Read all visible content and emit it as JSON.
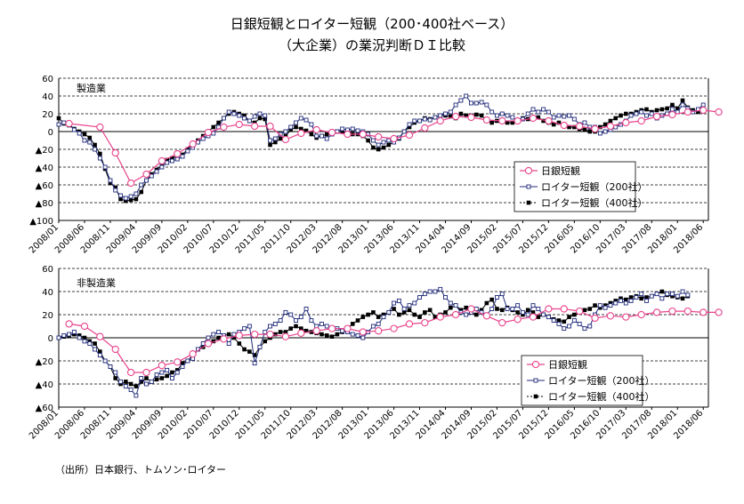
{
  "title_line1": "日銀短観とロイター短観（200･400社ベース）",
  "title_line2": "（大企業）の業況判断ＤＩ比較",
  "source": "（出所）日本銀行、トムソン･ロイター",
  "colors": {
    "boj": "#e8438c",
    "r200": "#1f2a7a",
    "r400": "#000000"
  },
  "chart_data": [
    {
      "type": "line",
      "panel_label": "製造業",
      "ylim": [
        -100,
        60
      ],
      "yticks": [
        60,
        40,
        20,
        0,
        -20,
        -40,
        -60,
        -80,
        -100
      ],
      "ytick_labels": [
        "60",
        "40",
        "20",
        "0",
        "▲20",
        "▲40",
        "▲60",
        "▲80",
        "▲100"
      ],
      "xtick_labels": [
        "2008/01",
        "2008/06",
        "2008/11",
        "2009/04",
        "2009/09",
        "2010/02",
        "2010/07",
        "2010/12",
        "2011/05",
        "2011/10",
        "2012/03",
        "2012/08",
        "2013/01",
        "2013/06",
        "2013/11",
        "2014/04",
        "2014/09",
        "2015/02",
        "2015/07",
        "2015/12",
        "2016/05",
        "2016/10",
        "2017/03",
        "2017/08",
        "2018/01",
        "2018/06"
      ],
      "legend": [
        "日銀短観",
        "ロイター短観（200社）",
        "ロイター短観（400社）"
      ],
      "boj": [
        [
          2,
          9
        ],
        [
          8,
          5
        ],
        [
          11,
          -24
        ],
        [
          14,
          -58
        ],
        [
          17,
          -48
        ],
        [
          20,
          -33
        ],
        [
          23,
          -25
        ],
        [
          26,
          -14
        ],
        [
          29,
          -1
        ],
        [
          32,
          5
        ],
        [
          35,
          8
        ],
        [
          38,
          6
        ],
        [
          41,
          6
        ],
        [
          44,
          -9
        ],
        [
          47,
          -2
        ],
        [
          50,
          2
        ],
        [
          53,
          -1
        ],
        [
          56,
          -3
        ],
        [
          59,
          -3
        ],
        [
          62,
          -6
        ],
        [
          65,
          -8
        ],
        [
          68,
          -4
        ],
        [
          71,
          4
        ],
        [
          74,
          12
        ],
        [
          77,
          17
        ],
        [
          80,
          16
        ],
        [
          83,
          13
        ],
        [
          86,
          12
        ],
        [
          89,
          12
        ],
        [
          92,
          15
        ],
        [
          95,
          12
        ],
        [
          98,
          7
        ],
        [
          101,
          6
        ],
        [
          104,
          3
        ],
        [
          107,
          6
        ],
        [
          110,
          10
        ],
        [
          113,
          12
        ],
        [
          116,
          17
        ],
        [
          119,
          19
        ],
        [
          122,
          22
        ],
        [
          125,
          24
        ],
        [
          128,
          22
        ]
      ],
      "r200": [
        8,
        10,
        9,
        2,
        -2,
        -10,
        -12,
        -20,
        -30,
        -40,
        -55,
        -66,
        -72,
        -75,
        -73,
        -70,
        -60,
        -55,
        -50,
        -45,
        -40,
        -35,
        -33,
        -31,
        -28,
        -22,
        -18,
        -12,
        -8,
        -5,
        -2,
        5,
        15,
        22,
        20,
        18,
        15,
        12,
        17,
        20,
        18,
        -10,
        -8,
        -3,
        0,
        5,
        10,
        15,
        13,
        8,
        -5,
        -5,
        -8,
        -3,
        0,
        3,
        2,
        3,
        1,
        0,
        -3,
        -10,
        -15,
        -12,
        -10,
        -12,
        -7,
        0,
        8,
        12,
        12,
        14,
        13,
        16,
        18,
        20,
        22,
        30,
        35,
        40,
        32,
        32,
        33,
        30,
        22,
        18,
        20,
        18,
        16,
        12,
        14,
        20,
        25,
        22,
        25,
        22,
        16,
        18,
        17,
        18,
        14,
        8,
        10,
        5,
        5,
        -2,
        0,
        2,
        5,
        8,
        12,
        18,
        20,
        22,
        18,
        20,
        15,
        18,
        20,
        25,
        22,
        30,
        26,
        22,
        25,
        30
      ],
      "r400": [
        15,
        9,
        7,
        3,
        0,
        -3,
        -7,
        -15,
        -25,
        -42,
        -58,
        -63,
        -76,
        -78,
        -77,
        -76,
        -68,
        -55,
        -48,
        -43,
        -38,
        -32,
        -30,
        -28,
        -26,
        -20,
        -14,
        -10,
        -5,
        0,
        5,
        10,
        15,
        20,
        22,
        20,
        18,
        12,
        10,
        15,
        14,
        -15,
        -12,
        -8,
        -5,
        2,
        5,
        3,
        1,
        -3,
        -7,
        -5,
        -3,
        -2,
        0,
        0,
        -2,
        -3,
        -3,
        -5,
        -10,
        -18,
        -20,
        -18,
        -15,
        -12,
        -8,
        0,
        5,
        10,
        12,
        15,
        14,
        16,
        18,
        18,
        17,
        15,
        20,
        18,
        18,
        19,
        18,
        12,
        10,
        12,
        13,
        10,
        10,
        13,
        15,
        14,
        15,
        16,
        12,
        10,
        8,
        10,
        7,
        5,
        5,
        3,
        2,
        0,
        0,
        5,
        8,
        12,
        15,
        18,
        20,
        20,
        22,
        24,
        25,
        22,
        24,
        25,
        26,
        30,
        26,
        35,
        27,
        24,
        22,
        26
      ]
    },
    {
      "type": "line",
      "panel_label": "非製造業",
      "ylim": [
        -60,
        60
      ],
      "yticks": [
        60,
        40,
        20,
        0,
        -20,
        -40,
        -60
      ],
      "ytick_labels": [
        "60",
        "40",
        "20",
        "0",
        "▲20",
        "▲40",
        "▲60"
      ],
      "xtick_labels": [
        "2008/01",
        "2008/06",
        "2008/11",
        "2009/04",
        "2009/09",
        "2010/02",
        "2010/07",
        "2010/12",
        "2011/05",
        "2011/10",
        "2012/03",
        "2012/08",
        "2013/01",
        "2013/06",
        "2013/11",
        "2014/04",
        "2014/09",
        "2015/02",
        "2015/07",
        "2015/12",
        "2016/05",
        "2016/10",
        "2017/03",
        "2017/08",
        "2018/01",
        "2018/06"
      ],
      "legend": [
        "日銀短観",
        "ロイター短観（200社）",
        "ロイター短観（400社）"
      ],
      "boj": [
        [
          2,
          12
        ],
        [
          5,
          10
        ],
        [
          8,
          1
        ],
        [
          11,
          -10
        ],
        [
          14,
          -30
        ],
        [
          17,
          -30
        ],
        [
          20,
          -24
        ],
        [
          23,
          -21
        ],
        [
          26,
          -14
        ],
        [
          29,
          -5
        ],
        [
          32,
          -1
        ],
        [
          35,
          2
        ],
        [
          38,
          3
        ],
        [
          41,
          3
        ],
        [
          44,
          1
        ],
        [
          47,
          4
        ],
        [
          50,
          6
        ],
        [
          53,
          8
        ],
        [
          56,
          8
        ],
        [
          59,
          5
        ],
        [
          62,
          6
        ],
        [
          65,
          8
        ],
        [
          68,
          12
        ],
        [
          71,
          13
        ],
        [
          74,
          18
        ],
        [
          77,
          20
        ],
        [
          80,
          25
        ],
        [
          83,
          19
        ],
        [
          86,
          13
        ],
        [
          89,
          16
        ],
        [
          92,
          18
        ],
        [
          95,
          25
        ],
        [
          98,
          25
        ],
        [
          101,
          23
        ],
        [
          104,
          17
        ],
        [
          107,
          19
        ],
        [
          110,
          18
        ],
        [
          113,
          20
        ],
        [
          116,
          22
        ],
        [
          119,
          23
        ],
        [
          122,
          23
        ],
        [
          125,
          22
        ],
        [
          128,
          22
        ]
      ],
      "r200": [
        0,
        2,
        3,
        5,
        0,
        -3,
        -5,
        -10,
        -15,
        -20,
        -25,
        -30,
        -38,
        -42,
        -45,
        -50,
        -35,
        -40,
        -38,
        -32,
        -30,
        -28,
        -35,
        -30,
        -25,
        -20,
        -18,
        -10,
        -5,
        0,
        3,
        5,
        2,
        -5,
        3,
        5,
        8,
        10,
        -22,
        -8,
        5,
        10,
        12,
        15,
        22,
        20,
        15,
        18,
        25,
        15,
        10,
        12,
        10,
        8,
        8,
        6,
        5,
        3,
        2,
        0,
        5,
        10,
        12,
        18,
        22,
        30,
        32,
        25,
        28,
        30,
        35,
        38,
        40,
        40,
        42,
        35,
        30,
        28,
        22,
        20,
        22,
        25,
        22,
        20,
        25,
        35,
        38,
        25,
        25,
        28,
        22,
        20,
        28,
        25,
        20,
        18,
        15,
        12,
        8,
        10,
        15,
        12,
        8,
        10,
        20,
        28,
        26,
        28,
        30,
        32,
        30,
        32,
        35,
        38,
        32,
        36,
        38,
        34,
        38,
        38,
        36,
        40,
        37
      ],
      "r400": [
        0,
        1,
        2,
        3,
        2,
        0,
        -3,
        -5,
        -12,
        -20,
        -25,
        -35,
        -40,
        -38,
        -40,
        -42,
        -38,
        -35,
        -38,
        -36,
        -35,
        -33,
        -30,
        -28,
        -22,
        -20,
        -15,
        -10,
        -8,
        -5,
        -3,
        0,
        2,
        3,
        0,
        -5,
        -10,
        -12,
        -15,
        -8,
        -3,
        0,
        3,
        5,
        5,
        8,
        10,
        8,
        6,
        5,
        4,
        3,
        2,
        1,
        3,
        5,
        8,
        12,
        15,
        18,
        20,
        22,
        18,
        20,
        22,
        25,
        20,
        22,
        24,
        20,
        18,
        22,
        24,
        18,
        20,
        22,
        26,
        28,
        24,
        26,
        22,
        20,
        24,
        30,
        33,
        25,
        24,
        26,
        24,
        22,
        20,
        24,
        22,
        18,
        20,
        18,
        16,
        15,
        14,
        18,
        20,
        22,
        24,
        25,
        28,
        26,
        28,
        30,
        32,
        34,
        33,
        35,
        36,
        34,
        35,
        36,
        38,
        40,
        37,
        36,
        35,
        34,
        36
      ]
    }
  ]
}
